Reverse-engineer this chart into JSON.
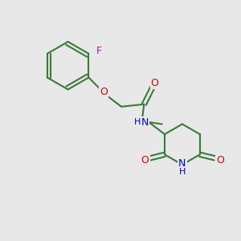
{
  "background_color": "#e8e8e8",
  "bond_color": "#3a7a3a",
  "bond_width": 1.5,
  "heteroatom_colors": {
    "O": "#cc0000",
    "N": "#0000cc",
    "F": "#cc00cc",
    "H": "#3a7a3a"
  },
  "figsize": [
    3.0,
    3.0
  ],
  "dpi": 100
}
